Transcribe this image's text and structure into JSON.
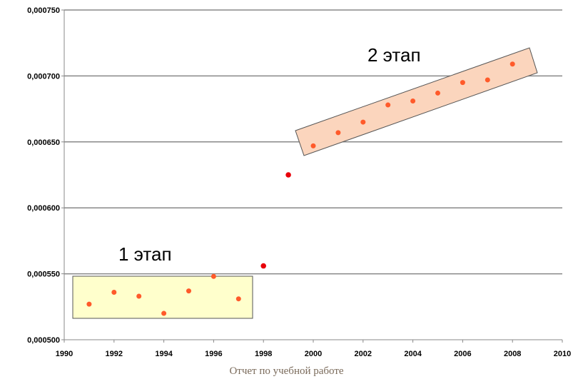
{
  "chart_data": {
    "type": "scatter",
    "title": "",
    "xlabel": "",
    "ylabel": "",
    "xlim": [
      1990,
      2010
    ],
    "ylim": [
      0.0005,
      0.00075
    ],
    "x_ticks": [
      1990,
      1992,
      1994,
      1996,
      1998,
      2000,
      2002,
      2004,
      2006,
      2008,
      2010
    ],
    "x_tick_labels": [
      "1990",
      "1992",
      "1994",
      "1996",
      "1998",
      "2000",
      "2002",
      "2004",
      "2006",
      "2008",
      "2010"
    ],
    "y_ticks": [
      0.0005,
      0.00055,
      0.0006,
      0.00065,
      0.0007,
      0.00075
    ],
    "y_tick_labels": [
      "0,000500",
      "0,000550",
      "0,000600",
      "0,000650",
      "0,000700",
      "0,000750"
    ],
    "grid": "horizontal",
    "series": [
      {
        "color": "#ff3300",
        "points": [
          {
            "x": 1991,
            "y": 0.000527
          },
          {
            "x": 1992,
            "y": 0.000536
          },
          {
            "x": 1993,
            "y": 0.000533
          },
          {
            "x": 1994,
            "y": 0.00052
          },
          {
            "x": 1995,
            "y": 0.000537
          },
          {
            "x": 1996,
            "y": 0.000548
          },
          {
            "x": 1997,
            "y": 0.000531
          },
          {
            "x": 1998,
            "y": 0.000556
          },
          {
            "x": 1999,
            "y": 0.000625
          },
          {
            "x": 2000,
            "y": 0.000647
          },
          {
            "x": 2001,
            "y": 0.000657
          },
          {
            "x": 2002,
            "y": 0.000665
          },
          {
            "x": 2003,
            "y": 0.000678
          },
          {
            "x": 2004,
            "y": 0.000681
          },
          {
            "x": 2005,
            "y": 0.000687
          },
          {
            "x": 2006,
            "y": 0.000695
          },
          {
            "x": 2007,
            "y": 0.000697
          },
          {
            "x": 2008,
            "y": 0.000709
          }
        ]
      }
    ],
    "annotations": [
      {
        "text": "1 этап",
        "fill": "#ffffcc",
        "from_year": 1991,
        "to_year": 1997
      },
      {
        "text": "2 этап",
        "fill": "#fbd5bd",
        "from_year": 2000,
        "to_year": 2008
      }
    ]
  },
  "caption": "Отчет по учебной работе"
}
